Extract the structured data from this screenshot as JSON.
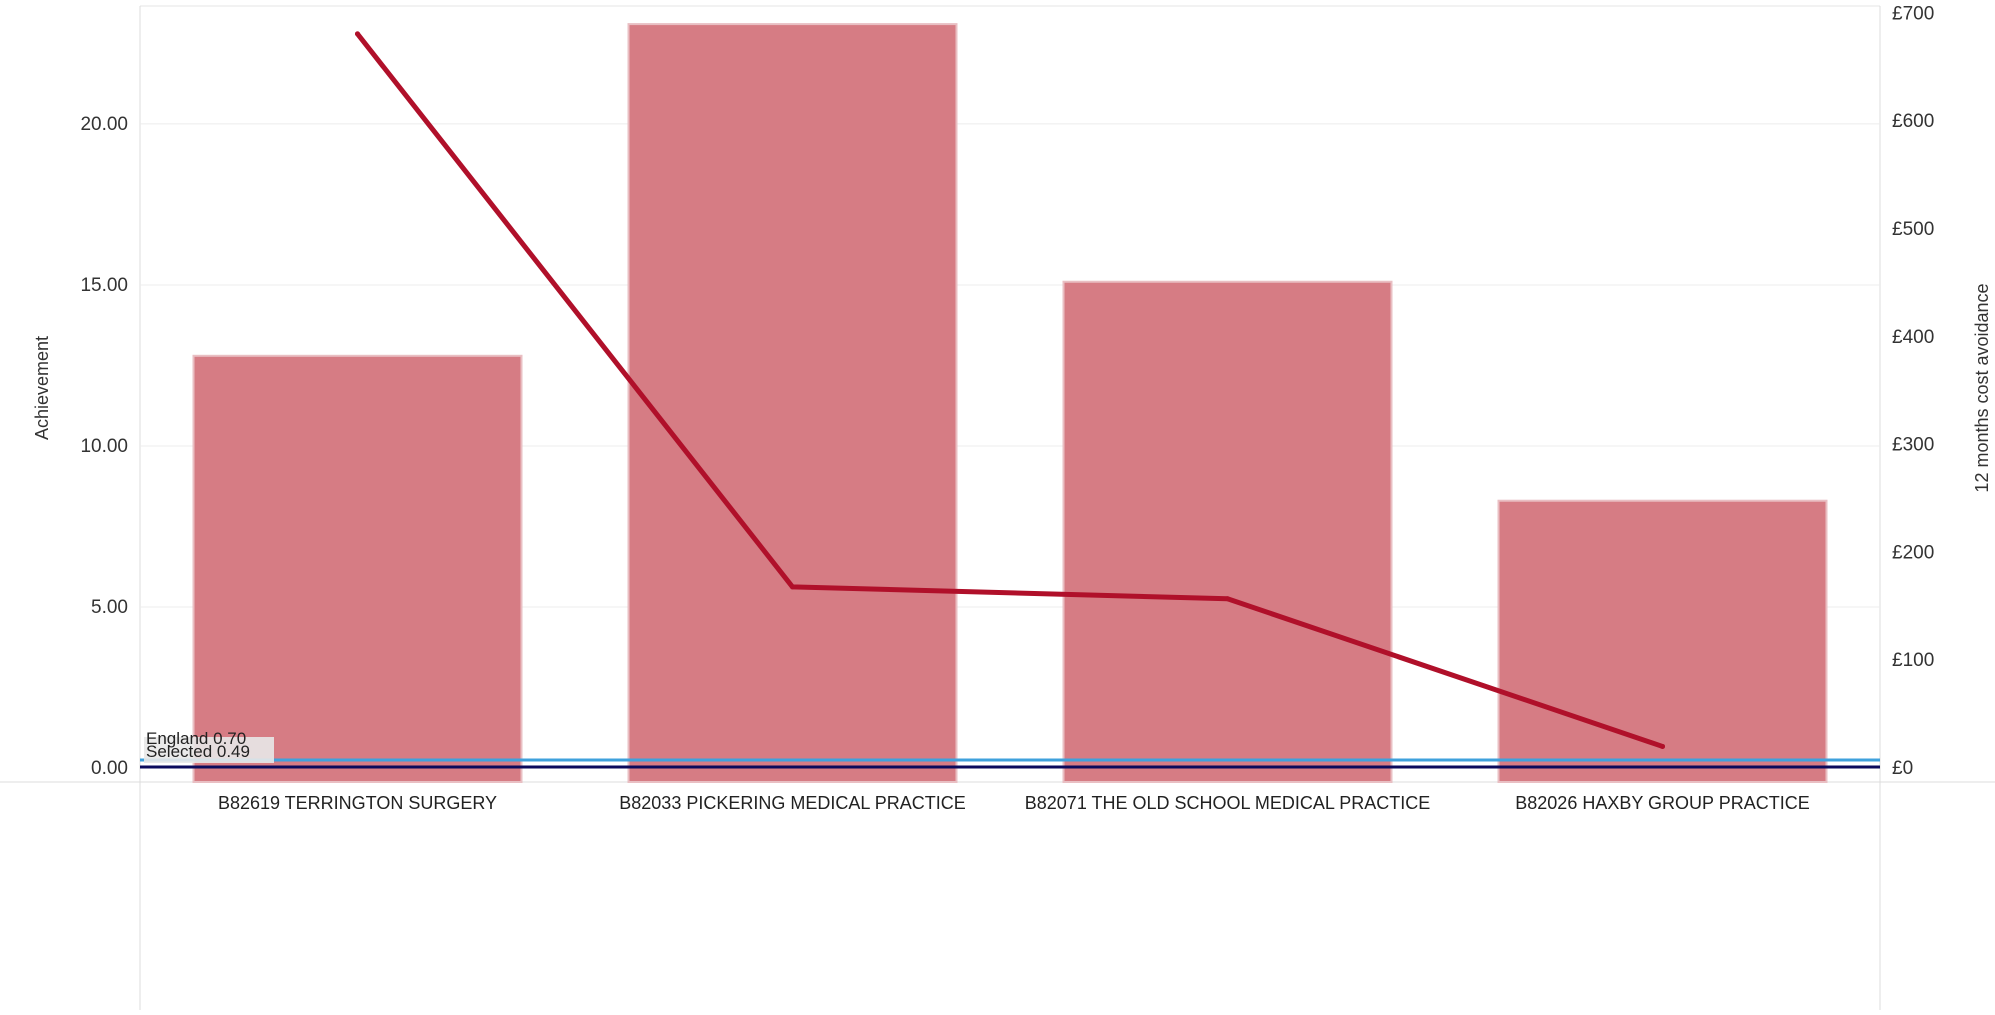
{
  "chart_data": {
    "type": "bar",
    "categories": [
      "B82619 TERRINGTON SURGERY",
      "B82033 PICKERING MEDICAL PRACTICE",
      "B82071 THE OLD SCHOOL MEDICAL PRACTICE",
      "B82026 HAXBY GROUP PRACTICE"
    ],
    "series": [
      {
        "values": [
          12.8,
          23.1,
          15.1,
          8.3
        ],
        "axis": "left",
        "kind": "bar",
        "color": "#d67c84"
      },
      {
        "values": [
          681,
          168,
          157,
          20
        ],
        "axis": "right",
        "kind": "line",
        "color": "#b0102a"
      }
    ],
    "ylabel": "Achievement",
    "y2label": "12 months cost avoidance",
    "ylim": [
      0,
      23.6
    ],
    "y2lim": [
      0,
      705
    ],
    "yticks": [
      "0.00",
      "5.00",
      "10.00",
      "15.00",
      "20.00"
    ],
    "y2ticks": [
      "£0",
      "£100",
      "£200",
      "£300",
      "£400",
      "£500",
      "£600",
      "£700"
    ],
    "reference_lines": [
      {
        "label": "England 0.70",
        "value": 0.7,
        "color": "#3fa1dc"
      },
      {
        "label": "Selected 0.49",
        "value": 0.49,
        "color": "#0a0a5c"
      }
    ],
    "grid": true
  }
}
